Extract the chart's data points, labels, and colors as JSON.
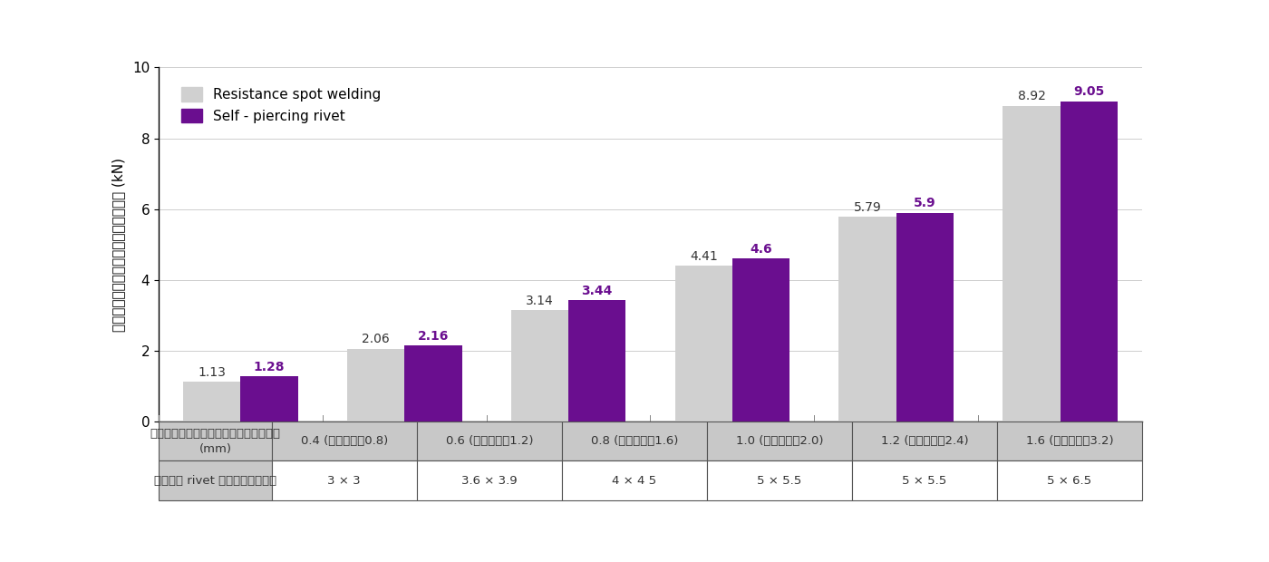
{
  "ylabel": "ความทนทานแรงเฉือน (kN)",
  "ylim": [
    0,
    10
  ],
  "yticks": [
    0,
    2,
    4,
    6,
    8,
    10
  ],
  "series1_label": "Resistance spot welding",
  "series2_label": "Self - piercing rivet",
  "series1_color": "#d0d0d0",
  "series2_color": "#6a0e8f",
  "series1_values": [
    1.13,
    2.06,
    3.14,
    4.41,
    5.79,
    8.92
  ],
  "series2_values": [
    1.28,
    2.16,
    3.44,
    4.6,
    5.9,
    9.05
  ],
  "row1_header": "ความหนาแผ่นชิ้นงาน\n(mm)",
  "row2_header": "ขนาด rivet ที่จะใช้",
  "row1_cells": [
    "0.4 (ผลรวม0.8)",
    "0.6 (ผลรวม1.2)",
    "0.8 (ผลรวม1.6)",
    "1.0 (ผลรวม2.0)",
    "1.2 (ผลรวม2.4)",
    "1.6 (ผลรวม3.2)"
  ],
  "row2_cells": [
    "3 × 3",
    "3.6 × 3.9",
    "4 × 4 5",
    "5 × 5.5",
    "5 × 5.5",
    "5 × 6.5"
  ],
  "bg_color": "#ffffff",
  "bar_width": 0.35,
  "legend_fontsize": 11,
  "value_fontsize": 10,
  "axis_fontsize": 11,
  "table_fontsize": 9.5,
  "header_bg": "#c8c8c8",
  "cell_bg": "#ffffff"
}
